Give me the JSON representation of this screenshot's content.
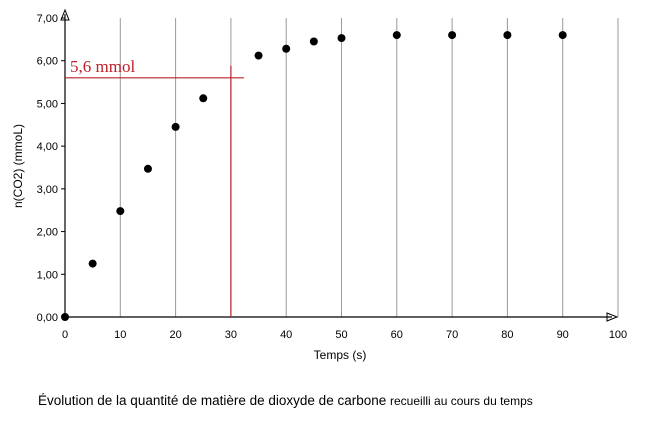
{
  "chart_data": {
    "type": "scatter",
    "title": "",
    "xlabel": "Temps (s)",
    "ylabel": "n(CO2) (mmoL)",
    "xlim": [
      0,
      100
    ],
    "ylim": [
      0,
      7
    ],
    "x_ticks": [
      "0",
      "10",
      "20",
      "30",
      "40",
      "50",
      "60",
      "70",
      "80",
      "90",
      "100"
    ],
    "y_ticks": [
      "0,00",
      "1,00",
      "2,00",
      "3,00",
      "4,00",
      "5,00",
      "6,00",
      "7,00"
    ],
    "grid": "vertical",
    "marker_color": "#000000",
    "series": [
      {
        "x": [
          0,
          5,
          10,
          15,
          20,
          25,
          35,
          40,
          45,
          50,
          60,
          70,
          80,
          90
        ],
        "y": [
          0.0,
          1.25,
          2.48,
          3.47,
          4.45,
          5.12,
          6.12,
          6.28,
          6.45,
          6.53,
          6.6,
          6.6,
          6.6,
          6.6
        ]
      }
    ],
    "annotation": {
      "text": "5,6 mmol",
      "color": "#c0202a",
      "x": 30,
      "y": 5.6
    }
  },
  "caption": {
    "main": "Évolution de la quantité de matière de dioxyde de carbone",
    "small": "recueilli au cours du temps"
  }
}
